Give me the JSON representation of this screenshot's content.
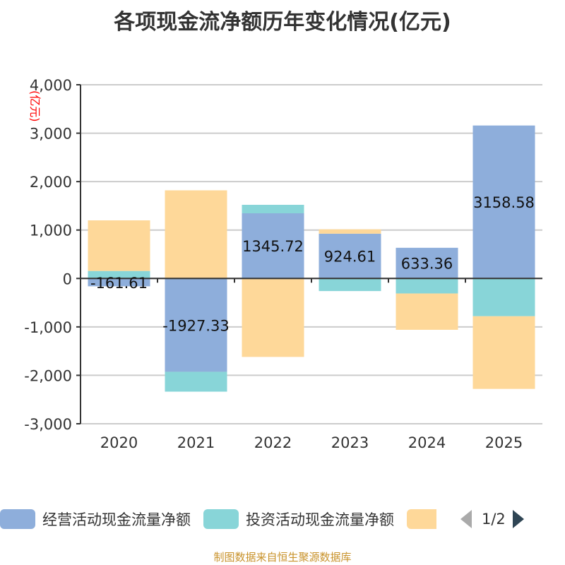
{
  "chart_data": {
    "type": "bar",
    "stacked": true,
    "title": "各项现金流净额历年变化情况(亿元)",
    "ylabel": "(亿元)",
    "categories": [
      "2020",
      "2021",
      "2022",
      "2023",
      "2024",
      "2025"
    ],
    "ylim": [
      -3000,
      4000
    ],
    "yticks": [
      4000,
      3000,
      2000,
      1000,
      0,
      -1000,
      -2000,
      -3000
    ],
    "ytick_labels": [
      "4,000",
      "3,000",
      "2,000",
      "1,000",
      "0",
      "-1,000",
      "-2,000",
      "-3,000"
    ],
    "grid": true,
    "legend_position": "bottom",
    "series": [
      {
        "name": "经营活动现金流量净额",
        "color": "#8eaedb",
        "values": [
          -161.61,
          -1927.33,
          1345.72,
          924.61,
          633.36,
          3158.58
        ],
        "labels": [
          "-161.61",
          "-1927.33",
          "1345.72",
          "924.61",
          "633.36",
          "3158.58"
        ]
      },
      {
        "name": "投资活动现金流量净额",
        "color": "#88d5d8",
        "values": [
          155,
          -410,
          175,
          -260,
          -310,
          -780
        ]
      },
      {
        "color": "#fed899",
        "values": [
          1045,
          1820,
          -1620,
          90,
          -750,
          -1500
        ]
      }
    ]
  },
  "legend": {
    "page": "1/2"
  },
  "source": "制图数据来自恒生聚源数据库"
}
